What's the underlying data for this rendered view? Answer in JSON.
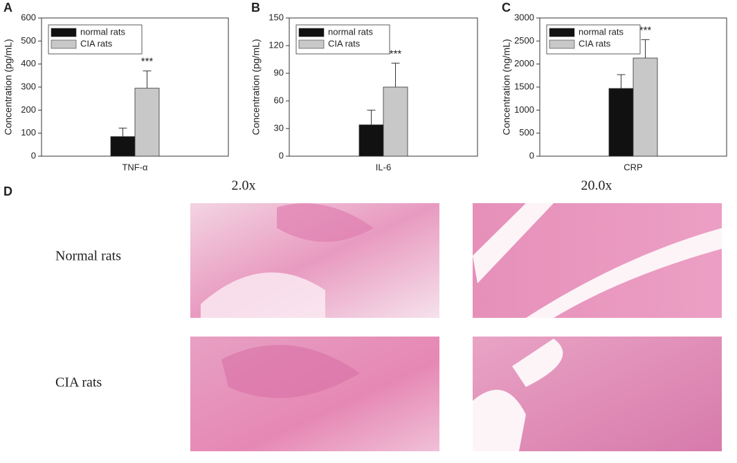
{
  "chart_data": [
    {
      "type": "bar",
      "panel": "A",
      "ylabel": "Concentration (pg/mL)",
      "categories": [
        "TNF-α"
      ],
      "series": [
        {
          "name": "normal rats",
          "color": "#111111",
          "values": [
            85
          ],
          "errors": [
            37
          ]
        },
        {
          "name": "CIA rats",
          "color": "#c8c8c8",
          "values": [
            295
          ],
          "errors": [
            75
          ],
          "annotations": [
            "***"
          ]
        }
      ],
      "ylim": [
        0,
        600
      ],
      "yticks": [
        0,
        100,
        200,
        300,
        400,
        500,
        600
      ],
      "legend": "upper-left"
    },
    {
      "type": "bar",
      "panel": "B",
      "ylabel": "Concentration (pg/mL)",
      "categories": [
        "IL-6"
      ],
      "series": [
        {
          "name": "normal rats",
          "color": "#111111",
          "values": [
            34
          ],
          "errors": [
            16
          ]
        },
        {
          "name": "CIA rats",
          "color": "#c8c8c8",
          "values": [
            75
          ],
          "errors": [
            26
          ],
          "annotations": [
            "***"
          ]
        }
      ],
      "ylim": [
        0,
        150
      ],
      "yticks": [
        0,
        30,
        60,
        90,
        120,
        150
      ],
      "legend": "upper-left"
    },
    {
      "type": "bar",
      "panel": "C",
      "ylabel": "Concentration (ng/mL)",
      "categories": [
        "CRP"
      ],
      "series": [
        {
          "name": "normal rats",
          "color": "#111111",
          "values": [
            1470
          ],
          "errors": [
            300
          ]
        },
        {
          "name": "CIA rats",
          "color": "#c8c8c8",
          "values": [
            2130
          ],
          "errors": [
            400
          ],
          "annotations": [
            "***"
          ]
        }
      ],
      "ylim": [
        0,
        3000
      ],
      "yticks": [
        0,
        500,
        1000,
        1500,
        2000,
        2500,
        3000
      ],
      "legend": "upper-left"
    }
  ],
  "histology": {
    "panel": "D",
    "columns": [
      "2.0x",
      "20.0x"
    ],
    "rows": [
      "Normal rats",
      "CIA rats"
    ]
  }
}
